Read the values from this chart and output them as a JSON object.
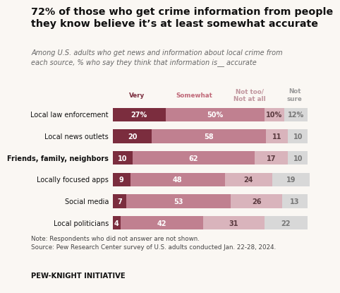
{
  "title": "72% of those who get crime information from people\nthey know believe it’s at least somewhat accurate",
  "subtitle": "Among U.S. adults who get news and information about local crime from\neach source, % who say they think that information is__ accurate",
  "note": "Note: Respondents who did not answer are not shown.\nSource: Pew Research Center survey of U.S. adults conducted Jan. 22-28, 2024.",
  "footer": "PEW-KNIGHT INITIATIVE",
  "categories": [
    "Local law enforcement",
    "Local news outlets",
    "Friends, family, neighbors",
    "Locally focused apps",
    "Social media",
    "Local politicians"
  ],
  "bold_category": "Friends, family, neighbors",
  "very": [
    27,
    20,
    10,
    9,
    7,
    4
  ],
  "somewhat": [
    50,
    58,
    62,
    48,
    53,
    42
  ],
  "not_too": [
    10,
    11,
    17,
    24,
    26,
    31
  ],
  "not_sure": [
    12,
    10,
    10,
    19,
    13,
    22
  ],
  "color_very": "#7b2d3e",
  "color_somewhat": "#c08090",
  "color_not_too": "#d9b4bc",
  "color_not_sure": "#d8d8d8",
  "legend_very_label": "Very",
  "legend_somewhat_label": "Somewhat",
  "legend_not_too_label": "Not too/\nNot at all",
  "legend_not_sure_label": "Not\nsure",
  "color_very_label": "#7b2d3e",
  "color_somewhat_label": "#c06878",
  "color_not_too_label": "#c0959d",
  "color_not_sure_label": "#999999",
  "background_color": "#faf7f3"
}
